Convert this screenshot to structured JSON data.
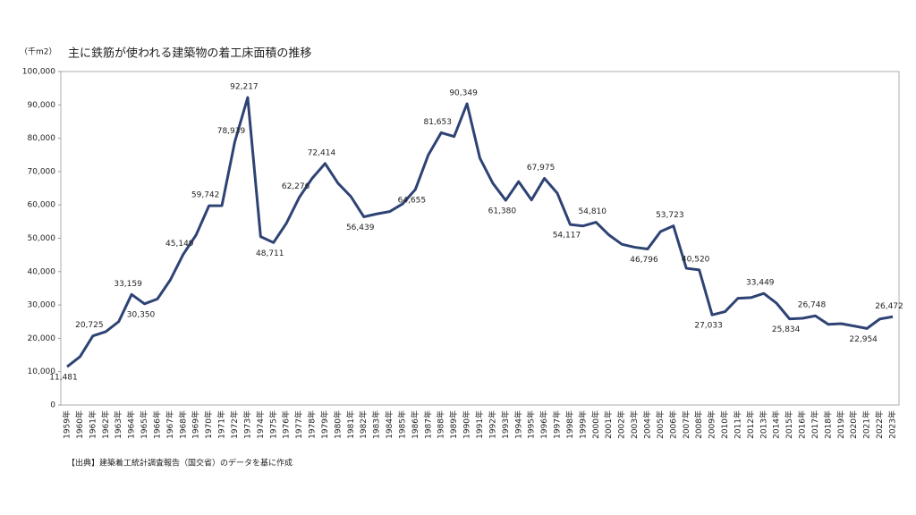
{
  "chart_data": {
    "type": "line",
    "title": "主に鉄筋が使われる建築物の着工床面積の推移",
    "y_label": "（千m2）",
    "source": "【出典】建築着工統計調査報告（国交省）のデータを基に作成",
    "categories": [
      "1959年",
      "1960年",
      "1961年",
      "1962年",
      "1963年",
      "1964年",
      "1965年",
      "1966年",
      "1967年",
      "1968年",
      "1969年",
      "1970年",
      "1971年",
      "1972年",
      "1973年",
      "1974年",
      "1975年",
      "1976年",
      "1977年",
      "1978年",
      "1979年",
      "1980年",
      "1981年",
      "1982年",
      "1983年",
      "1984年",
      "1985年",
      "1986年",
      "1987年",
      "1988年",
      "1989年",
      "1990年",
      "1991年",
      "1992年",
      "1993年",
      "1994年",
      "1995年",
      "1996年",
      "1997年",
      "1998年",
      "1999年",
      "2000年",
      "2001年",
      "2002年",
      "2003年",
      "2004年",
      "2005年",
      "2006年",
      "2007年",
      "2008年",
      "2009年",
      "2010年",
      "2011年",
      "2012年",
      "2013年",
      "2014年",
      "2015年",
      "2016年",
      "2017年",
      "2018年",
      "2019年",
      "2020年",
      "2021年",
      "2022年",
      "2023年"
    ],
    "series": [
      {
        "color": "#2e4374",
        "values": [
          11481,
          14500,
          20725,
          22000,
          25000,
          33159,
          30350,
          31800,
          37500,
          45149,
          51000,
          59742,
          59800,
          78939,
          92217,
          50500,
          48711,
          54500,
          62276,
          68000,
          72414,
          66500,
          62500,
          56439,
          57300,
          58000,
          60300,
          64655,
          75000,
          81653,
          80500,
          90349,
          74000,
          66500,
          61380,
          67000,
          61500,
          67975,
          63500,
          54117,
          53700,
          54810,
          51000,
          48200,
          47300,
          46796,
          52000,
          53723,
          41000,
          40520,
          27033,
          28000,
          32000,
          32200,
          33449,
          30500,
          25834,
          26000,
          26748,
          24200,
          24400,
          23700,
          22954,
          25800,
          26472
        ],
        "value_labels": [
          "11,481",
          null,
          "20,725",
          null,
          null,
          "33,159",
          "30,350",
          null,
          null,
          "45,149",
          null,
          "59,742",
          null,
          "78,939",
          "92,217",
          null,
          "48,711",
          null,
          "62,276",
          null,
          "72,414",
          null,
          null,
          "56,439",
          null,
          null,
          null,
          "64,655",
          null,
          "81,653",
          null,
          "90,349",
          null,
          null,
          "61,380",
          null,
          null,
          "67,975",
          null,
          "54,117",
          null,
          "54,810",
          null,
          null,
          null,
          "46,796",
          null,
          "53,723",
          null,
          "40,520",
          "27,033",
          null,
          null,
          null,
          "33,449",
          null,
          "25,834",
          null,
          "26,748",
          null,
          null,
          null,
          "22,954",
          null,
          "26,472"
        ]
      }
    ],
    "ylim": [
      0,
      100000
    ],
    "yticks": [
      0,
      {
        "value": 10000,
        "label": "10,000"
      },
      {
        "value": 20000,
        "label": "20,000"
      },
      {
        "value": 30000,
        "label": "30,000"
      },
      {
        "value": 40000,
        "label": "40,000"
      },
      {
        "value": 50000,
        "label": "50,000"
      },
      {
        "value": 60000,
        "label": "60,000"
      },
      {
        "value": 70000,
        "label": "70,000"
      },
      {
        "value": 80000,
        "label": "80,000"
      },
      {
        "value": 90000,
        "label": "90,000"
      },
      {
        "value": 100000,
        "label": "100,000"
      }
    ],
    "grid": false
  }
}
